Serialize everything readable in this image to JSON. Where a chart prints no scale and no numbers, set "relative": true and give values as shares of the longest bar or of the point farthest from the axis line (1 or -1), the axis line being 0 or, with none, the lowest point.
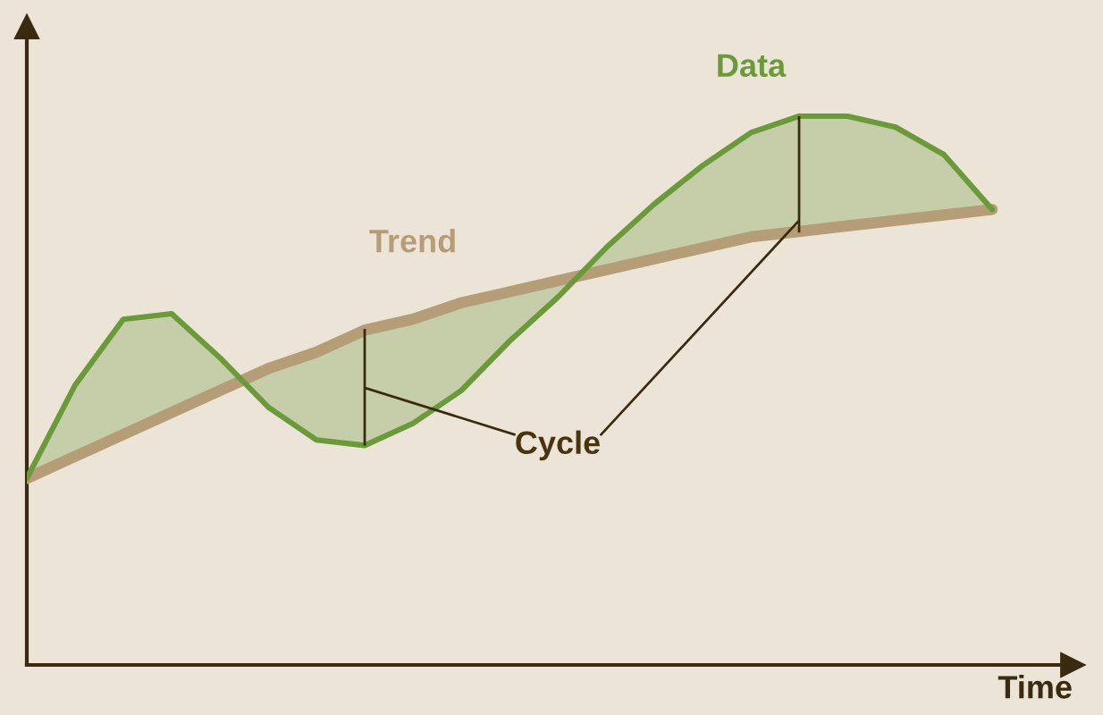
{
  "chart_data": {
    "type": "line",
    "relative": true,
    "xlabel": "Time",
    "categories": [
      null,
      null,
      null,
      null,
      null,
      null,
      null,
      null,
      null,
      null,
      null,
      null,
      null,
      null,
      null,
      null,
      null,
      null,
      null,
      null,
      null
    ],
    "series": [
      {
        "name": "Trend",
        "color": "#b59d78",
        "values": [
          0.34,
          0.38,
          0.42,
          0.46,
          0.5,
          0.54,
          0.57,
          0.61,
          0.63,
          0.66,
          0.68,
          0.7,
          0.72,
          0.74,
          0.76,
          0.78,
          0.79,
          0.8,
          0.81,
          0.82,
          0.83
        ]
      },
      {
        "name": "Data",
        "color": "#6a9a3a",
        "values": [
          0.34,
          0.51,
          0.63,
          0.64,
          0.56,
          0.47,
          0.41,
          0.4,
          0.44,
          0.5,
          0.59,
          0.67,
          0.76,
          0.84,
          0.91,
          0.97,
          1.0,
          1.0,
          0.98,
          0.93,
          0.83
        ],
        "lower": [
          0.34,
          0.38,
          0.42,
          0.46,
          0.5,
          0.54,
          0.57,
          0.61,
          0.63,
          0.66,
          0.68,
          0.7,
          0.72,
          0.74,
          0.76,
          0.78,
          0.79,
          0.8,
          0.81,
          0.82,
          0.83
        ],
        "upper": [
          0.34,
          0.51,
          0.63,
          0.64,
          0.56,
          0.47,
          0.41,
          0.4,
          0.44,
          0.5,
          0.59,
          0.67,
          0.76,
          0.84,
          0.91,
          0.97,
          1.0,
          1.0,
          0.98,
          0.93,
          0.83
        ]
      }
    ],
    "annotations": [
      "Cycle"
    ],
    "legend": false,
    "marker": "none",
    "line_style": "solid"
  }
}
